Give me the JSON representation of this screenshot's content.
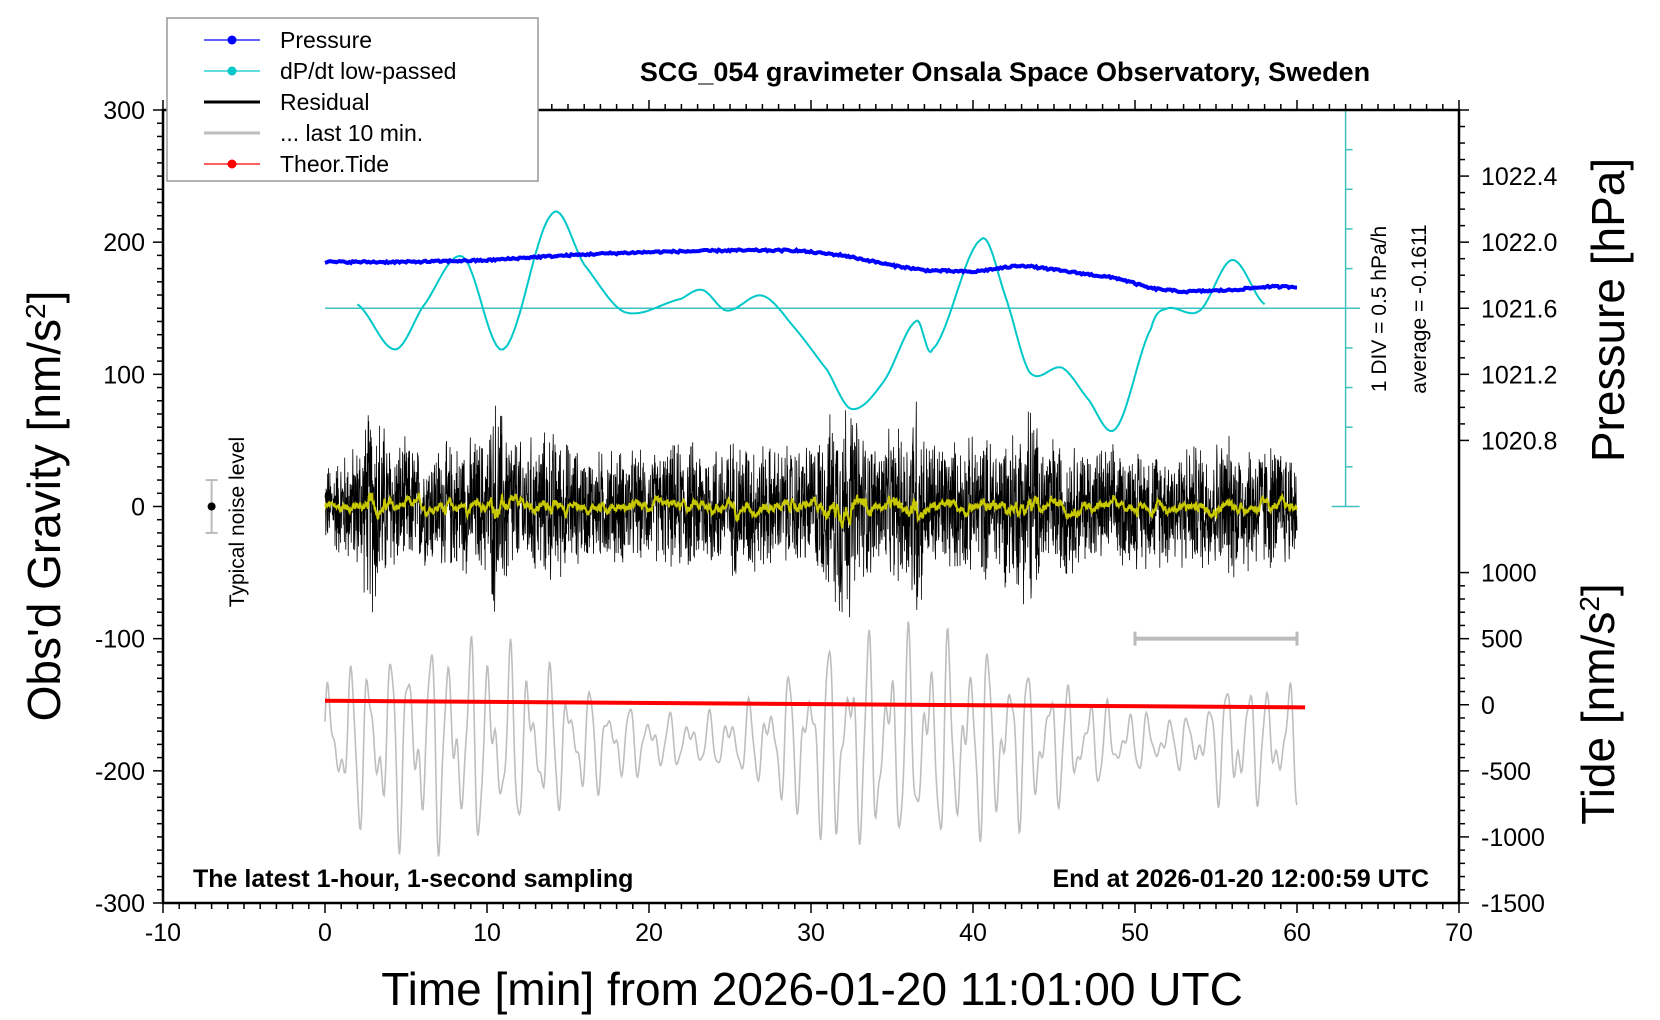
{
  "chart_data": {
    "type": "line",
    "title": "SCG_054 gravimeter Onsala Space Observatory, Sweden",
    "xlabel": "Time [min] from 2026-01-20 11:01:00 UTC",
    "ylabel_left": "Obs'd Gravity [nm/s2]",
    "ylabel_right_pressure": "Pressure [hPa]",
    "ylabel_right_tide": "Tide [nm/s2]",
    "xlim": [
      -10,
      70
    ],
    "ylim": [
      -300,
      300
    ],
    "pressure_lim": [
      1018.0,
      1022.8
    ],
    "tide_lim": [
      -1500,
      4500
    ],
    "x_ticks": [
      "-10",
      "0",
      "10",
      "20",
      "30",
      "40",
      "50",
      "60",
      "70"
    ],
    "y_ticks": [
      "-300",
      "-200",
      "-100",
      "0",
      "100",
      "200",
      "300"
    ],
    "pressure_ticks": [
      "1020.8",
      "1021.2",
      "1021.6",
      "1022.0",
      "1022.4"
    ],
    "tide_ticks": [
      "-1500",
      "-1000",
      "-500",
      "0",
      "500",
      "1000"
    ],
    "legend": {
      "placement": "top-left",
      "entries": [
        {
          "label": "Pressure",
          "color": "#0000ff",
          "marker": true
        },
        {
          "label": "dP/dt low-passed",
          "color": "#00c8c8",
          "marker": true
        },
        {
          "label": "Residual",
          "color": "#000000",
          "marker": false
        },
        {
          "label": "... last 10 min.",
          "color": "#bebebe",
          "marker": false
        },
        {
          "label": "Theor.Tide",
          "color": "#ff0000",
          "marker": true
        }
      ]
    },
    "annotations": {
      "bottom_left": "The latest 1-hour, 1-second sampling",
      "bottom_right": "End at 2026-01-20 12:00:59 UTC",
      "noise_label": "Typical noise level",
      "dpdt_scale": "1 DIV = 0.5 hPa/h",
      "dpdt_average": "average = -0.1611"
    },
    "noise_level": {
      "x": -7,
      "half_range": 20
    },
    "scale_bar_last10": {
      "x": [
        50,
        60
      ],
      "y": -100
    },
    "dpdt_axis": {
      "x": 63,
      "div_hPa_per_h": 0.5,
      "divs_each_side": 5,
      "zero_gravity_level": 150
    },
    "pressure": {
      "x": [
        0,
        5,
        10,
        13,
        17,
        20,
        25,
        29,
        32,
        35,
        37,
        40,
        43,
        46,
        49,
        51,
        53,
        56,
        58,
        60
      ],
      "y": [
        1021.88,
        1021.88,
        1021.89,
        1021.91,
        1021.93,
        1021.94,
        1021.95,
        1021.95,
        1021.92,
        1021.86,
        1021.83,
        1021.82,
        1021.86,
        1021.82,
        1021.78,
        1021.72,
        1021.7,
        1021.71,
        1021.73,
        1021.73
      ]
    },
    "dpdt": {
      "x": [
        2,
        4.3,
        6,
        8.5,
        11,
        14,
        16,
        18.5,
        22,
        23.3,
        24.8,
        27,
        29,
        31,
        32.5,
        34.5,
        36.5,
        37.5,
        40.5,
        42,
        43.5,
        45.5,
        47,
        48.8,
        51,
        52,
        54,
        56,
        58
      ],
      "y": [
        0.05,
        -0.52,
        0.01,
        0.65,
        -0.52,
        1.19,
        0.55,
        -0.05,
        0.12,
        0.23,
        -0.03,
        0.16,
        -0.25,
        -0.78,
        -1.27,
        -0.92,
        -0.16,
        -0.52,
        0.87,
        0.15,
        -0.81,
        -0.75,
        -1.12,
        -1.52,
        -0.25,
        0.0,
        -0.03,
        0.61,
        0.05
      ]
    },
    "residual_envelope": {
      "x": [
        0,
        2,
        3,
        4,
        6,
        8,
        10,
        10.5,
        12,
        14,
        16,
        18,
        20,
        22,
        24,
        26,
        28,
        30,
        31,
        32,
        33,
        34,
        36,
        36.5,
        37,
        39,
        41,
        43,
        43.5,
        44,
        46,
        48,
        50,
        52,
        54,
        56,
        58,
        60
      ],
      "amp": [
        35,
        55,
        95,
        60,
        50,
        55,
        60,
        95,
        55,
        65,
        45,
        50,
        45,
        55,
        55,
        60,
        50,
        55,
        70,
        105,
        70,
        55,
        70,
        112,
        60,
        55,
        60,
        70,
        102,
        65,
        55,
        50,
        50,
        50,
        55,
        60,
        55,
        50
      ]
    },
    "residual_lowpass_amplitude": 8,
    "theoretical_tide": {
      "x": [
        0,
        60.5
      ],
      "y": [
        30,
        -20
      ]
    },
    "last10_gravity_center": -178
  }
}
